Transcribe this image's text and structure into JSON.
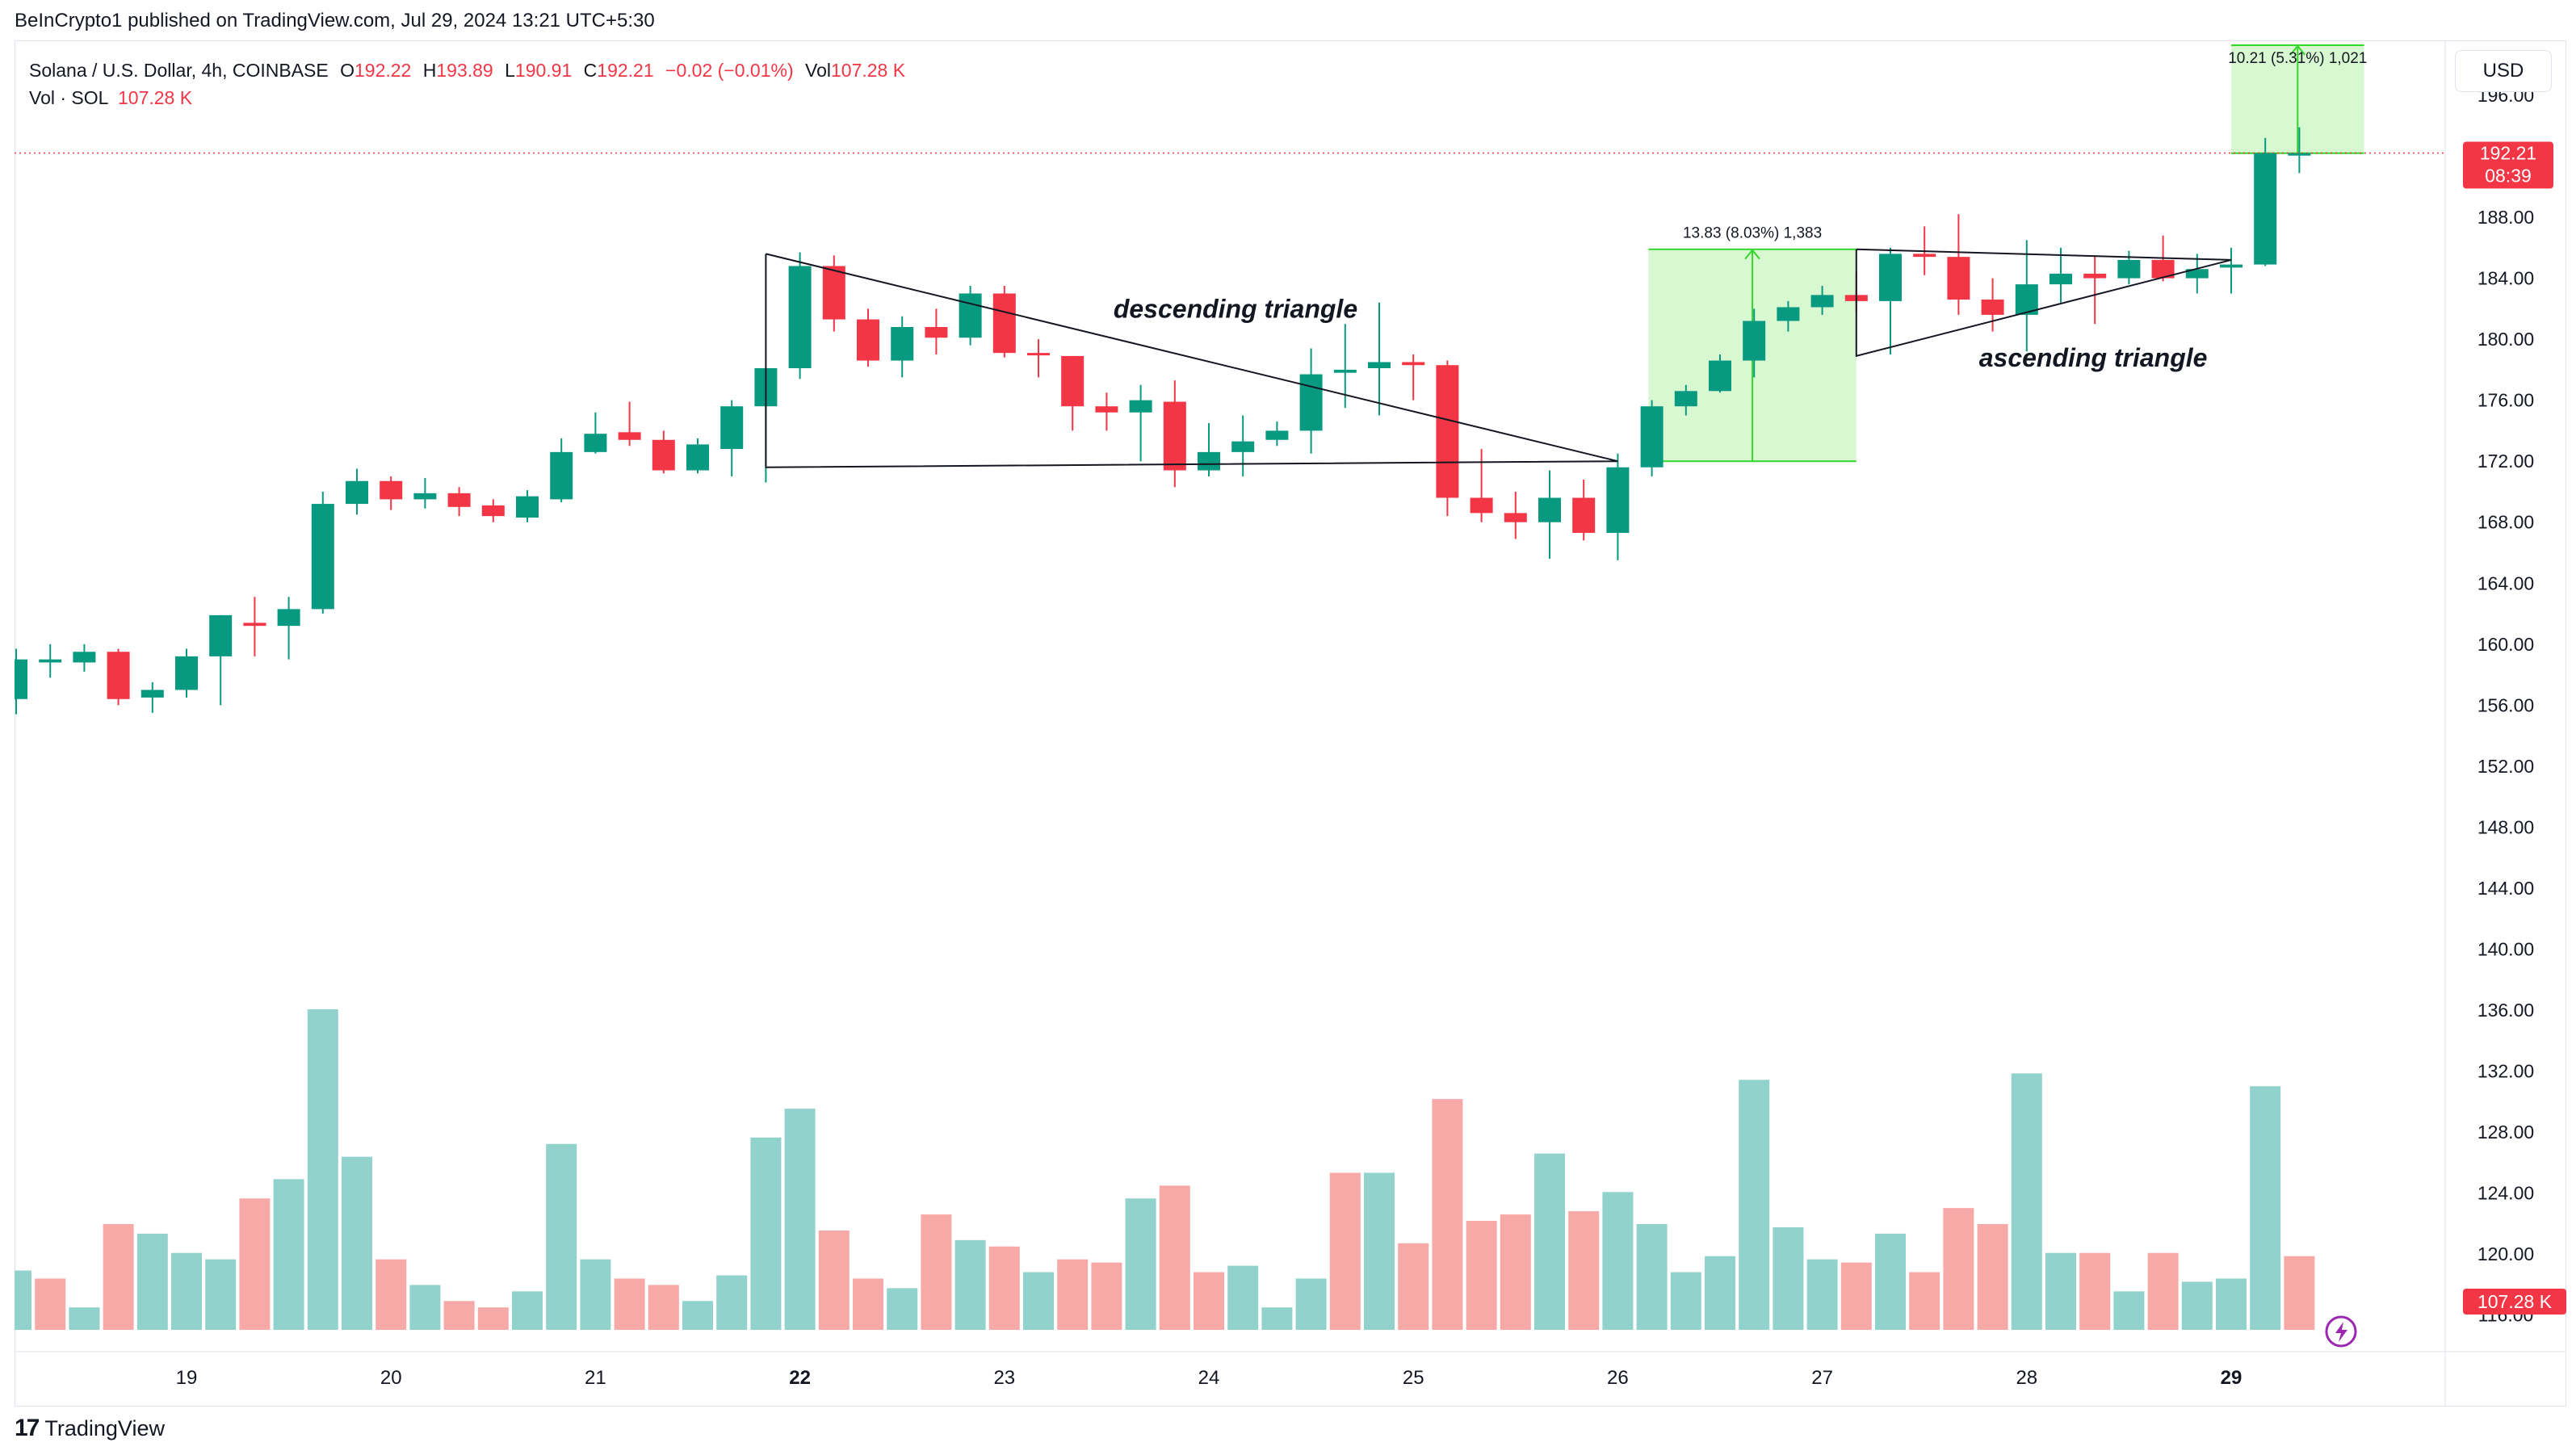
{
  "publisher_line": "BeInCrypto1 published on TradingView.com, Jul 29, 2024 13:21 UTC+5:30",
  "legend": {
    "symbol": "Solana / U.S. Dollar, 4h, COINBASE",
    "o_label": "O",
    "o": "192.22",
    "h_label": "H",
    "h": "193.89",
    "l_label": "L",
    "l": "190.91",
    "c_label": "C",
    "c": "192.21",
    "change": "−0.02 (−0.01%)",
    "vol_label": "Vol",
    "vol": "107.28 K",
    "vol_row_label": "Vol · SOL",
    "vol_row_value": "107.28 K"
  },
  "currency_button": "USD",
  "brand": "TradingView",
  "colors": {
    "up": "#089981",
    "down": "#f23645",
    "vol_up": "#92d2cc",
    "vol_down": "#f7a9a7",
    "measure_fill": "#d8f8d2",
    "measure_line": "#35d62a",
    "price_line": "#f23645",
    "drawing": "#131722"
  },
  "chart_data": {
    "type": "candlestick",
    "interval": "4h",
    "price_axis": {
      "ticks": [
        "116.00",
        "120.00",
        "124.00",
        "128.00",
        "132.00",
        "136.00",
        "140.00",
        "144.00",
        "148.00",
        "152.00",
        "156.00",
        "160.00",
        "164.00",
        "168.00",
        "172.00",
        "176.00",
        "180.00",
        "184.00",
        "188.00",
        "192.00",
        "196.00"
      ],
      "range": [
        113.6,
        199.6
      ]
    },
    "x_labels": [
      {
        "label": "19",
        "bold": false,
        "bar": 5
      },
      {
        "label": "20",
        "bold": false,
        "bar": 11
      },
      {
        "label": "21",
        "bold": false,
        "bar": 17
      },
      {
        "label": "22",
        "bold": true,
        "bar": 23
      },
      {
        "label": "23",
        "bold": false,
        "bar": 29
      },
      {
        "label": "24",
        "bold": false,
        "bar": 35
      },
      {
        "label": "25",
        "bold": false,
        "bar": 41
      },
      {
        "label": "26",
        "bold": false,
        "bar": 47
      },
      {
        "label": "27",
        "bold": false,
        "bar": 53
      },
      {
        "label": "28",
        "bold": false,
        "bar": 59
      },
      {
        "label": "29",
        "bold": true,
        "bar": 65
      }
    ],
    "candles": [
      [
        156.4,
        159.7,
        155.4,
        159.0
      ],
      [
        158.8,
        160.0,
        157.8,
        159.0
      ],
      [
        158.8,
        160.0,
        158.2,
        159.5
      ],
      [
        159.5,
        159.7,
        156.0,
        156.4
      ],
      [
        156.5,
        157.5,
        155.5,
        157.0
      ],
      [
        157.0,
        159.7,
        156.5,
        159.2
      ],
      [
        159.2,
        161.9,
        156.0,
        161.9
      ],
      [
        161.4,
        163.1,
        159.2,
        161.2
      ],
      [
        161.2,
        163.1,
        159.0,
        162.3
      ],
      [
        162.3,
        170.0,
        162.0,
        169.2
      ],
      [
        169.2,
        171.5,
        168.5,
        170.7
      ],
      [
        170.7,
        171.0,
        168.8,
        169.5
      ],
      [
        169.5,
        170.9,
        168.9,
        169.9
      ],
      [
        169.9,
        170.3,
        168.4,
        169.0
      ],
      [
        169.1,
        169.5,
        168.0,
        168.4
      ],
      [
        168.3,
        170.1,
        168.0,
        169.7
      ],
      [
        169.5,
        173.5,
        169.3,
        172.6
      ],
      [
        172.6,
        175.2,
        172.5,
        173.8
      ],
      [
        173.9,
        175.9,
        173.0,
        173.4
      ],
      [
        173.4,
        174.0,
        171.2,
        171.4
      ],
      [
        171.4,
        173.5,
        171.2,
        173.1
      ],
      [
        172.8,
        176.0,
        171.0,
        175.6
      ],
      [
        175.6,
        178.0,
        170.6,
        178.1
      ],
      [
        178.1,
        185.7,
        177.4,
        184.8
      ],
      [
        184.8,
        185.5,
        180.5,
        181.3
      ],
      [
        181.3,
        182.0,
        178.2,
        178.6
      ],
      [
        178.6,
        181.5,
        177.5,
        180.8
      ],
      [
        180.8,
        182.0,
        179.0,
        180.1
      ],
      [
        180.1,
        183.5,
        179.6,
        183.0
      ],
      [
        183.0,
        183.5,
        178.8,
        179.1
      ],
      [
        179.1,
        180.0,
        177.5,
        179.0
      ],
      [
        178.9,
        178.9,
        174.0,
        175.6
      ],
      [
        175.6,
        176.5,
        174.0,
        175.2
      ],
      [
        175.2,
        177.0,
        172.0,
        176.0
      ],
      [
        175.9,
        177.3,
        170.3,
        171.4
      ],
      [
        171.4,
        174.5,
        171.0,
        172.6
      ],
      [
        172.6,
        175.0,
        171.0,
        173.3
      ],
      [
        173.4,
        174.6,
        173.0,
        174.0
      ],
      [
        174.0,
        179.4,
        172.5,
        177.7
      ],
      [
        177.8,
        181.0,
        175.5,
        178.0
      ],
      [
        178.1,
        182.4,
        175.0,
        178.5
      ],
      [
        178.5,
        179.0,
        176.0,
        178.3
      ],
      [
        178.3,
        178.6,
        168.4,
        169.6
      ],
      [
        169.6,
        172.8,
        168.0,
        168.6
      ],
      [
        168.6,
        170.0,
        166.9,
        168.0
      ],
      [
        168.0,
        171.4,
        165.6,
        169.6
      ],
      [
        169.6,
        170.8,
        166.8,
        167.3
      ],
      [
        167.3,
        172.5,
        165.5,
        171.6
      ],
      [
        171.6,
        176.0,
        171.0,
        175.6
      ],
      [
        175.6,
        177.0,
        175.0,
        176.6
      ],
      [
        176.6,
        179.0,
        176.5,
        178.6
      ],
      [
        178.6,
        182.0,
        177.5,
        181.2
      ],
      [
        181.2,
        182.5,
        180.5,
        182.1
      ],
      [
        182.1,
        183.5,
        181.6,
        182.9
      ],
      [
        182.9,
        184.4,
        181.8,
        182.5
      ],
      [
        182.5,
        186.0,
        179.0,
        185.6
      ],
      [
        185.6,
        187.4,
        184.2,
        185.4
      ],
      [
        185.4,
        188.2,
        181.6,
        182.6
      ],
      [
        182.6,
        184.0,
        180.5,
        181.6
      ],
      [
        181.6,
        186.5,
        179.2,
        183.6
      ],
      [
        183.6,
        186.0,
        182.4,
        184.3
      ],
      [
        184.3,
        185.5,
        181.0,
        184.0
      ],
      [
        184.0,
        185.8,
        183.6,
        185.2
      ],
      [
        185.2,
        186.8,
        183.8,
        184.0
      ],
      [
        184.0,
        185.6,
        183.0,
        184.6
      ],
      [
        184.7,
        186.0,
        183.0,
        184.9
      ],
      [
        184.9,
        193.2,
        184.8,
        192.2
      ],
      [
        192.2,
        193.9,
        190.9,
        192.2
      ]
    ],
    "volume": [
      {
        "v": 18.5,
        "up": true
      },
      {
        "v": 16.0,
        "up": false
      },
      {
        "v": 7.0,
        "up": true
      },
      {
        "v": 33.0,
        "up": false
      },
      {
        "v": 30.0,
        "up": true
      },
      {
        "v": 24.0,
        "up": true
      },
      {
        "v": 22.0,
        "up": true
      },
      {
        "v": 41.0,
        "up": false
      },
      {
        "v": 47.0,
        "up": true
      },
      {
        "v": 100.0,
        "up": true
      },
      {
        "v": 54.0,
        "up": true
      },
      {
        "v": 22.0,
        "up": false
      },
      {
        "v": 14.0,
        "up": true
      },
      {
        "v": 9.0,
        "up": false
      },
      {
        "v": 7.0,
        "up": false
      },
      {
        "v": 12.0,
        "up": true
      },
      {
        "v": 58.0,
        "up": true
      },
      {
        "v": 22.0,
        "up": true
      },
      {
        "v": 16.0,
        "up": false
      },
      {
        "v": 14.0,
        "up": false
      },
      {
        "v": 9.0,
        "up": true
      },
      {
        "v": 17.0,
        "up": true
      },
      {
        "v": 60.0,
        "up": true
      },
      {
        "v": 69.0,
        "up": true
      },
      {
        "v": 31.0,
        "up": false
      },
      {
        "v": 16.0,
        "up": false
      },
      {
        "v": 13.0,
        "up": true
      },
      {
        "v": 36.0,
        "up": false
      },
      {
        "v": 28.0,
        "up": true
      },
      {
        "v": 26.0,
        "up": false
      },
      {
        "v": 18.0,
        "up": true
      },
      {
        "v": 22.0,
        "up": false
      },
      {
        "v": 21.0,
        "up": false
      },
      {
        "v": 41.0,
        "up": true
      },
      {
        "v": 45.0,
        "up": false
      },
      {
        "v": 18.0,
        "up": false
      },
      {
        "v": 20.0,
        "up": true
      },
      {
        "v": 7.0,
        "up": true
      },
      {
        "v": 16.0,
        "up": true
      },
      {
        "v": 49.0,
        "up": false
      },
      {
        "v": 49.0,
        "up": true
      },
      {
        "v": 27.0,
        "up": false
      },
      {
        "v": 72.0,
        "up": false
      },
      {
        "v": 34.0,
        "up": false
      },
      {
        "v": 36.0,
        "up": false
      },
      {
        "v": 55.0,
        "up": true
      },
      {
        "v": 37.0,
        "up": false
      },
      {
        "v": 43.0,
        "up": true
      },
      {
        "v": 33.0,
        "up": true
      },
      {
        "v": 18.0,
        "up": true
      },
      {
        "v": 23.0,
        "up": true
      },
      {
        "v": 78.0,
        "up": true
      },
      {
        "v": 32.0,
        "up": true
      },
      {
        "v": 22.0,
        "up": true
      },
      {
        "v": 21.0,
        "up": false
      },
      {
        "v": 30.0,
        "up": true
      },
      {
        "v": 18.0,
        "up": false
      },
      {
        "v": 38.0,
        "up": false
      },
      {
        "v": 33.0,
        "up": false
      },
      {
        "v": 80.0,
        "up": true
      },
      {
        "v": 24.0,
        "up": true
      },
      {
        "v": 24.0,
        "up": false
      },
      {
        "v": 12.0,
        "up": true
      },
      {
        "v": 24.0,
        "up": false
      },
      {
        "v": 15.0,
        "up": true
      },
      {
        "v": 16.0,
        "up": true
      },
      {
        "v": 76.0,
        "up": true
      },
      {
        "v": 23.0,
        "up": false
      }
    ],
    "current_price": {
      "value": 192.21,
      "label": "192.21",
      "countdown": "08:39"
    },
    "volume_label": "107.28 K",
    "drawings": {
      "descending_triangle": {
        "label": "descending triangle",
        "top": [
          22.0,
          185.6
        ],
        "bottom_left": [
          22.0,
          171.6
        ],
        "apex": [
          47.0,
          172.0
        ]
      },
      "ascending_triangle": {
        "label": "ascending triangle",
        "left_top": [
          54.0,
          185.9
        ],
        "left_bottom": [
          54.0,
          178.9
        ],
        "apex": [
          65.0,
          185.2
        ]
      },
      "measure_1": {
        "label": "13.83 (8.03%) 1,383",
        "from_bar": 47.9,
        "to_bar": 54.0,
        "low": 172.0,
        "high": 185.9
      },
      "measure_2": {
        "label": "10.21 (5.31%) 1,021",
        "from_bar": 65.0,
        "to_bar": 68.9,
        "low": 192.2,
        "high": 202.4
      }
    }
  }
}
